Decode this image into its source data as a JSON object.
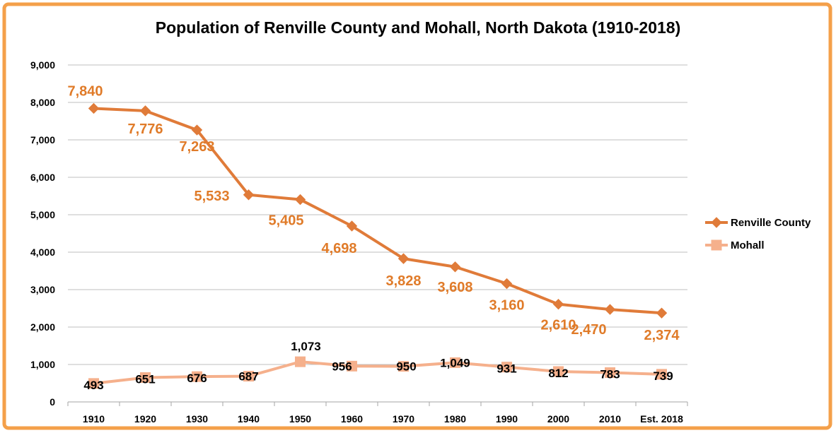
{
  "chart_data": {
    "type": "line",
    "title": "Population of Renville County and Mohall, North Dakota (1910-2018)",
    "xlabel": "",
    "ylabel": "",
    "categories": [
      "1910",
      "1920",
      "1930",
      "1940",
      "1950",
      "1960",
      "1970",
      "1980",
      "1990",
      "2000",
      "2010",
      "Est. 2018"
    ],
    "ylim": [
      0,
      9000
    ],
    "yticks": [
      0,
      1000,
      2000,
      3000,
      4000,
      5000,
      6000,
      7000,
      8000,
      9000
    ],
    "ytick_labels": [
      "0",
      "1,000",
      "2,000",
      "3,000",
      "4,000",
      "5,000",
      "6,000",
      "7,000",
      "8,000",
      "9,000"
    ],
    "grid": true,
    "legend_position": "right",
    "series": [
      {
        "name": "Renville County",
        "values": [
          7840,
          7776,
          7263,
          5533,
          5405,
          4698,
          3828,
          3608,
          3160,
          2610,
          2470,
          2374
        ],
        "labels": [
          "7,840",
          "7,776",
          "7,263",
          "5,533",
          "5,405",
          "4,698",
          "3,828",
          "3,608",
          "3,160",
          "2,610",
          "2,470",
          "2,374"
        ],
        "color": "#e07b39",
        "label_color": "#e07b29",
        "marker": "diamond"
      },
      {
        "name": "Mohall",
        "values": [
          493,
          651,
          676,
          687,
          1073,
          956,
          950,
          1049,
          931,
          812,
          783,
          739
        ],
        "labels": [
          "493",
          "651",
          "676",
          "687",
          "1,073",
          "956",
          "950",
          "1,049",
          "931",
          "812",
          "783",
          "739"
        ],
        "color": "#f5b08c",
        "label_color": "#000000",
        "marker": "square"
      }
    ],
    "frame_color": "#f4a04a",
    "gridline_color": "#bfbfbf"
  }
}
